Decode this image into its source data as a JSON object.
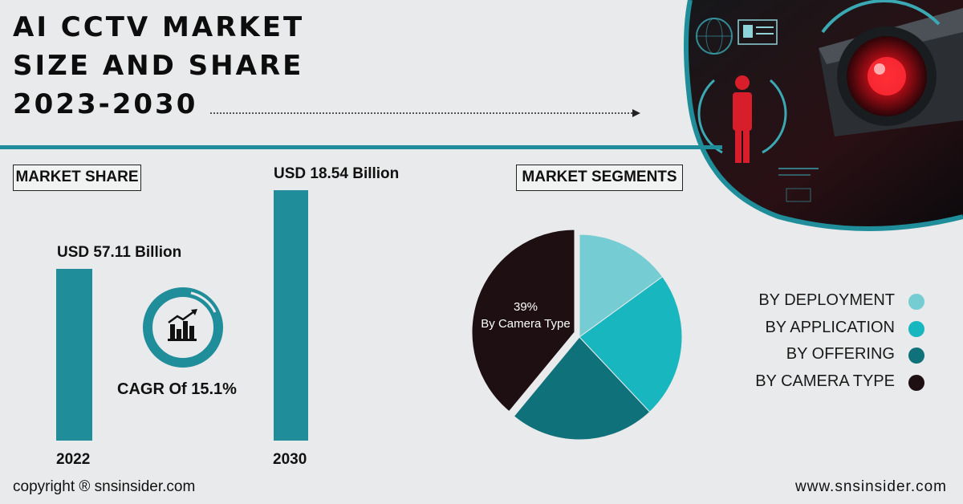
{
  "title": {
    "line1": "AI CCTV MARKET",
    "line2": "SIZE AND SHARE",
    "line3": "2023-2030"
  },
  "market_share": {
    "label": "MARKET SHARE",
    "cagr": "CAGR Of 15.1%"
  },
  "market_segments": {
    "label": "MARKET SEGMENTS"
  },
  "colors": {
    "teal_bar": "#1f8d9a",
    "deployment": "#75ccd3",
    "application": "#18b7bf",
    "offering": "#0f717a",
    "camera_type": "#1e0f12"
  },
  "chart_data": [
    {
      "type": "bar",
      "categories": [
        "2022",
        "2030"
      ],
      "values": [
        57.11,
        18.54
      ],
      "data_labels": [
        "USD 57.11 Billion",
        "USD 18.54 Billion"
      ],
      "title": "",
      "xlabel": "",
      "ylabel": ""
    },
    {
      "type": "pie",
      "categories": [
        "BY DEPLOYMENT",
        "BY APPLICATION",
        "BY OFFERING",
        "BY CAMERA TYPE"
      ],
      "values": [
        15,
        23,
        23,
        39
      ],
      "annotation": {
        "value": "39%",
        "text": "By Camera Type"
      },
      "legend_position": "right"
    }
  ],
  "footer": {
    "copyright": "copyright ® snsinsider.com",
    "website": "www.snsinsider.com"
  }
}
